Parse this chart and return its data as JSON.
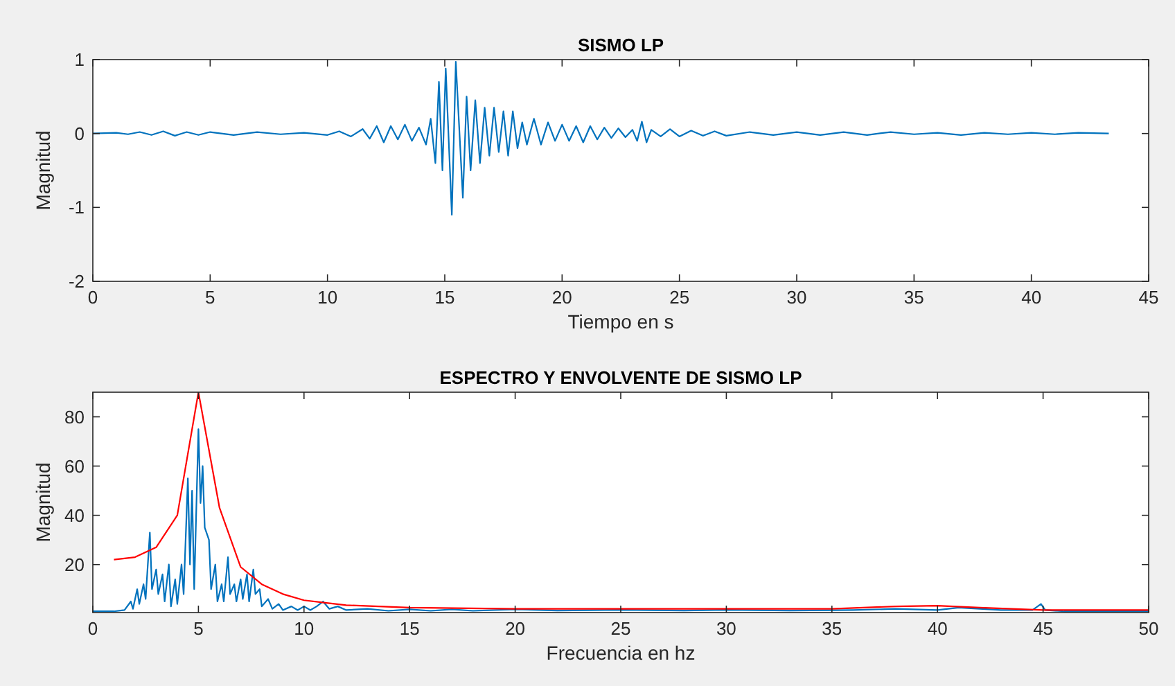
{
  "chart_data": [
    {
      "type": "line",
      "title": "SISMO LP",
      "xlabel": "Tiempo en s",
      "ylabel": "Magnitud",
      "xlim": [
        0,
        45
      ],
      "ylim": [
        -2,
        1
      ],
      "xticks": [
        0,
        5,
        10,
        15,
        20,
        25,
        30,
        35,
        40,
        45
      ],
      "yticks": [
        -2,
        -1,
        0,
        1
      ],
      "series": [
        {
          "color": "#0072bd",
          "x": [
            0,
            1,
            1.5,
            2,
            2.5,
            3,
            3.5,
            4,
            4.5,
            5,
            6,
            7,
            8,
            9,
            10,
            10.5,
            11,
            11.5,
            11.8,
            12.1,
            12.4,
            12.7,
            13,
            13.3,
            13.6,
            13.9,
            14.2,
            14.4,
            14.6,
            14.75,
            14.9,
            15.04,
            15.3,
            15.47,
            15.77,
            15.93,
            16.1,
            16.3,
            16.5,
            16.7,
            16.9,
            17.1,
            17.3,
            17.5,
            17.7,
            17.9,
            18.1,
            18.3,
            18.5,
            18.8,
            19.1,
            19.4,
            19.7,
            20,
            20.3,
            20.6,
            20.9,
            21.2,
            21.5,
            21.8,
            22.1,
            22.4,
            22.7,
            23,
            23.2,
            23.4,
            23.6,
            23.8,
            24.2,
            24.6,
            25,
            25.5,
            26,
            26.5,
            27,
            28,
            29,
            30,
            31,
            32,
            33,
            34,
            35,
            36,
            37,
            38,
            39,
            40,
            41,
            42,
            43.3
          ],
          "values": [
            0,
            0.01,
            -0.01,
            0.02,
            -0.02,
            0.03,
            -0.03,
            0.02,
            -0.02,
            0.02,
            -0.02,
            0.02,
            -0.01,
            0.01,
            -0.02,
            0.03,
            -0.04,
            0.06,
            -0.07,
            0.1,
            -0.12,
            0.1,
            -0.08,
            0.12,
            -0.1,
            0.08,
            -0.15,
            0.2,
            -0.4,
            0.7,
            -0.5,
            0.88,
            -1.1,
            0.97,
            -0.87,
            0.5,
            -0.5,
            0.45,
            -0.4,
            0.35,
            -0.3,
            0.35,
            -0.25,
            0.3,
            -0.3,
            0.3,
            -0.2,
            0.15,
            -0.15,
            0.2,
            -0.15,
            0.15,
            -0.1,
            0.12,
            -0.1,
            0.1,
            -0.12,
            0.1,
            -0.08,
            0.08,
            -0.06,
            0.07,
            -0.05,
            0.05,
            -0.1,
            0.16,
            -0.12,
            0.05,
            -0.04,
            0.06,
            -0.04,
            0.04,
            -0.03,
            0.03,
            -0.03,
            0.02,
            -0.02,
            0.02,
            -0.02,
            0.02,
            -0.02,
            0.02,
            -0.01,
            0.01,
            -0.02,
            0.01,
            -0.01,
            0.01,
            -0.01,
            0.01,
            0
          ]
        }
      ]
    },
    {
      "type": "line",
      "title": "ESPECTRO Y ENVOLVENTE DE SISMO LP",
      "xlabel": "Frecuencia en hz",
      "ylabel": "Magnitud",
      "xlim": [
        0,
        50
      ],
      "ylim": [
        0.5,
        90
      ],
      "xticks": [
        0,
        5,
        10,
        15,
        20,
        25,
        30,
        35,
        40,
        45,
        50
      ],
      "yticks": [
        20,
        40,
        60,
        80
      ],
      "series": [
        {
          "color": "#0072bd",
          "x": [
            0,
            1,
            1.5,
            1.8,
            1.9,
            2.1,
            2.2,
            2.4,
            2.5,
            2.7,
            2.8,
            3.0,
            3.1,
            3.3,
            3.4,
            3.6,
            3.7,
            3.9,
            4.0,
            4.2,
            4.3,
            4.5,
            4.6,
            4.7,
            4.8,
            5.0,
            5.1,
            5.2,
            5.3,
            5.5,
            5.6,
            5.8,
            5.9,
            6.1,
            6.2,
            6.4,
            6.5,
            6.7,
            6.8,
            7.0,
            7.1,
            7.3,
            7.4,
            7.6,
            7.7,
            7.9,
            8.0,
            8.3,
            8.5,
            8.8,
            9.0,
            9.4,
            9.7,
            10,
            10.3,
            10.6,
            10.9,
            11.2,
            11.6,
            12,
            13,
            14,
            15,
            16,
            17,
            18,
            20,
            22,
            25,
            28,
            30,
            33,
            36,
            38,
            40,
            41,
            43,
            44.5,
            44.9,
            45.1,
            46,
            50
          ],
          "values": [
            1,
            1,
            1.5,
            5,
            2,
            10,
            4,
            12,
            6,
            33,
            10,
            18,
            8,
            16,
            5,
            20,
            3,
            14,
            4,
            20,
            8,
            55,
            20,
            50,
            10,
            75,
            45,
            60,
            35,
            30,
            10,
            20,
            5,
            12,
            5,
            23,
            8,
            12,
            5,
            14,
            6,
            16,
            5,
            18,
            8,
            10,
            3,
            6,
            2,
            4,
            1.5,
            3,
            1.5,
            3,
            1.5,
            3,
            5,
            2,
            3,
            1.5,
            2,
            1.2,
            1.8,
            1.2,
            1.8,
            1.2,
            1.8,
            1.3,
            1.6,
            1.3,
            1.6,
            1.3,
            1.5,
            2,
            1.5,
            2.5,
            1.5,
            1.5,
            4,
            1.5,
            1,
            1
          ]
        },
        {
          "color": "#ff0000",
          "x": [
            1,
            2,
            3,
            4,
            5,
            6,
            7,
            8,
            9,
            10,
            11,
            12,
            15,
            20,
            30,
            35,
            38,
            40,
            42,
            45,
            50
          ],
          "values": [
            22,
            23,
            27,
            40,
            90,
            43,
            19,
            12,
            8,
            5.5,
            4.5,
            3.5,
            2.5,
            2,
            2,
            2,
            3,
            3.3,
            2.5,
            1.5,
            1.5
          ]
        }
      ]
    }
  ]
}
